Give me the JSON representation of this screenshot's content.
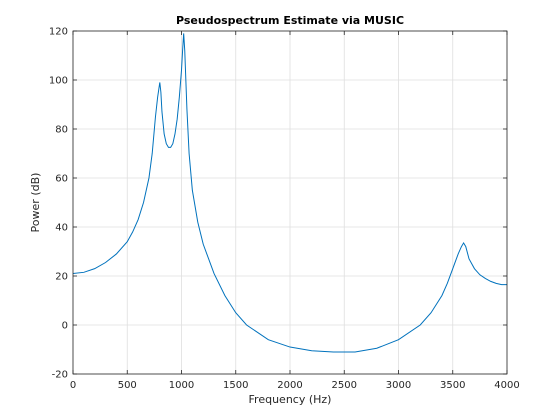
{
  "chart_data": {
    "type": "line",
    "title": "Pseudospectrum Estimate via MUSIC",
    "xlabel": "Frequency (Hz)",
    "ylabel": "Power (dB)",
    "xlim": [
      0,
      4000
    ],
    "ylim": [
      -20,
      120
    ],
    "x_ticks": [
      0,
      500,
      1000,
      1500,
      2000,
      2500,
      3000,
      3500,
      4000
    ],
    "y_ticks": [
      -20,
      0,
      20,
      40,
      60,
      80,
      100,
      120
    ],
    "grid": true,
    "line_color": "#0072bd",
    "series": [
      {
        "x": [
          0,
          100,
          200,
          300,
          400,
          500,
          550,
          600,
          650,
          700,
          730,
          760,
          780,
          790,
          800,
          810,
          820,
          840,
          860,
          880,
          900,
          920,
          940,
          960,
          980,
          1000,
          1010,
          1020,
          1030,
          1040,
          1050,
          1070,
          1100,
          1150,
          1200,
          1300,
          1400,
          1500,
          1600,
          1800,
          2000,
          2200,
          2400,
          2500,
          2600,
          2800,
          3000,
          3200,
          3300,
          3400,
          3450,
          3500,
          3550,
          3580,
          3600,
          3620,
          3650,
          3700,
          3750,
          3800,
          3850,
          3900,
          3950,
          4000
        ],
        "y": [
          21,
          21.5,
          23,
          25.5,
          29,
          34,
          38,
          43,
          50,
          60,
          70,
          85,
          93,
          96,
          99,
          95,
          87,
          78,
          74,
          72.5,
          72.5,
          74,
          78,
          84,
          93,
          104,
          112,
          119,
          112,
          100,
          88,
          70,
          55,
          42,
          33,
          21,
          12,
          5,
          0,
          -6,
          -9,
          -10.5,
          -11,
          -11,
          -11,
          -9.5,
          -6,
          0,
          5,
          12,
          17,
          23,
          29,
          32,
          33.5,
          32,
          27,
          23,
          20.5,
          19,
          17.8,
          17,
          16.5,
          16.5
        ]
      }
    ]
  }
}
